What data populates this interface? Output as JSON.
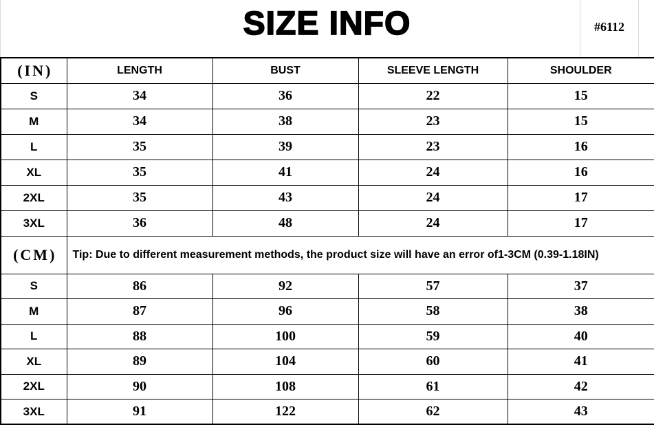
{
  "page": {
    "title": "SIZE INFO",
    "sku": "#6112"
  },
  "chart_data": {
    "type": "table",
    "title": "SIZE INFO",
    "columns": [
      "LENGTH",
      "BUST",
      "SLEEVE LENGTH",
      "SHOULDER"
    ],
    "sections": [
      {
        "unit": "(IN)",
        "rows": [
          {
            "size": "S",
            "values": [
              34,
              36,
              22,
              15
            ]
          },
          {
            "size": "M",
            "values": [
              34,
              38,
              23,
              15
            ]
          },
          {
            "size": "L",
            "values": [
              35,
              39,
              23,
              16
            ]
          },
          {
            "size": "XL",
            "values": [
              35,
              41,
              24,
              16
            ]
          },
          {
            "size": "2XL",
            "values": [
              35,
              43,
              24,
              17
            ]
          },
          {
            "size": "3XL",
            "values": [
              36,
              48,
              24,
              17
            ]
          }
        ]
      },
      {
        "unit": "(CM)",
        "tip": "Tip: Due to different measurement methods, the product size will have an error of1-3CM (0.39-1.18IN)",
        "rows": [
          {
            "size": "S",
            "values": [
              86,
              92,
              57,
              37
            ]
          },
          {
            "size": "M",
            "values": [
              87,
              96,
              58,
              38
            ]
          },
          {
            "size": "L",
            "values": [
              88,
              100,
              59,
              40
            ]
          },
          {
            "size": "XL",
            "values": [
              89,
              104,
              60,
              41
            ]
          },
          {
            "size": "2XL",
            "values": [
              90,
              108,
              61,
              42
            ]
          },
          {
            "size": "3XL",
            "values": [
              91,
              122,
              62,
              43
            ]
          }
        ]
      }
    ],
    "layout": {
      "grid": true,
      "sku_note": "#6112"
    }
  },
  "colors": {
    "background": "#ffffff",
    "text": "#000000",
    "border": "#000000",
    "faint_gridline": "#d9d9d9"
  }
}
